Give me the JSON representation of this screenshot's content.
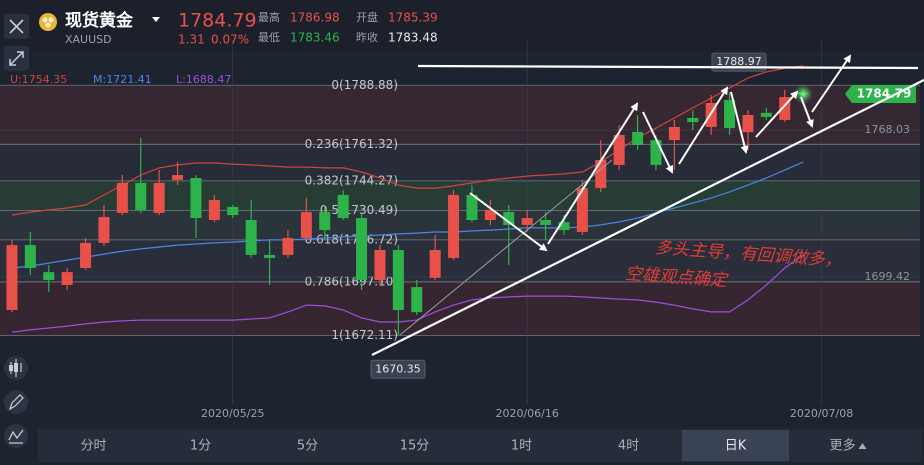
{
  "header": {
    "name": "现货黄金",
    "symbol": "XAUUSD",
    "price": "1784.79",
    "change": "1.31",
    "change_pct": "0.07%",
    "stats": [
      {
        "label": "最高",
        "value": "1786.98"
      },
      {
        "label": "开盘",
        "value": "1785.39"
      },
      {
        "label": "最低",
        "value": "1783.46"
      },
      {
        "label": "昨收",
        "value": "1783.48"
      }
    ]
  },
  "chart_data": {
    "type": "candlestick",
    "open": [
      1684,
      1714.3,
      1701.7,
      1695.7,
      1703.6,
      1715.3,
      1729.3,
      1743.3,
      1729.3,
      1744.7,
      1745.6,
      1726,
      1732.1,
      1726,
      1709.7,
      1709.7,
      1717.6,
      1729.7,
      1737.7,
      1726.9,
      1698,
      1712,
      1694.7,
      1699,
      1708.3,
      1737.7,
      1726,
      1729.7,
      1723.7,
      1726,
      1725,
      1720.4,
      1740.9,
      1751.7,
      1767.1,
      1763.3,
      1763.3,
      1773.6,
      1769.4,
      1782,
      1767,
      1776,
      1772.7,
      1785.39
    ],
    "high": [
      1716.7,
      1720.4,
      1705,
      1703.6,
      1717.6,
      1733,
      1747,
      1764.3,
      1749.3,
      1753.1,
      1747,
      1737.7,
      1733,
      1735.3,
      1716.7,
      1721.3,
      1736.3,
      1733,
      1740,
      1729.7,
      1714.3,
      1714.3,
      1698,
      1719,
      1740,
      1742.3,
      1735.3,
      1733,
      1730.7,
      1729.7,
      1728.3,
      1744.7,
      1763.3,
      1770.3,
      1775,
      1765.7,
      1772.7,
      1777.3,
      1784.3,
      1785.7,
      1777.3,
      1778.3,
      1786.7,
      1786.98
    ],
    "low": [
      1683,
      1700.3,
      1692.4,
      1693.3,
      1702.7,
      1713.9,
      1728.3,
      1729.3,
      1728.3,
      1742.3,
      1717.6,
      1725,
      1726.9,
      1708.3,
      1695.7,
      1708.3,
      1716.7,
      1716.7,
      1726,
      1693.3,
      1695.7,
      1672.3,
      1681.7,
      1698,
      1707.3,
      1725,
      1723.7,
      1705,
      1720.4,
      1716.7,
      1719,
      1719,
      1739,
      1749.3,
      1758.7,
      1749.3,
      1749.3,
      1768,
      1765.7,
      1765.7,
      1758.7,
      1772.7,
      1771.7,
      1783.46
    ],
    "close": [
      1714.3,
      1703.6,
      1698,
      1701.7,
      1715.3,
      1727.4,
      1743.3,
      1730.7,
      1743.3,
      1747,
      1726.9,
      1735.3,
      1728.3,
      1709.7,
      1708.3,
      1717.6,
      1729.7,
      1721.3,
      1726.9,
      1698,
      1712,
      1684,
      1683,
      1712,
      1737.7,
      1726,
      1730.7,
      1723.7,
      1726.9,
      1723.7,
      1721.3,
      1740.9,
      1754,
      1765.7,
      1761,
      1751.7,
      1769.4,
      1771.7,
      1780.6,
      1768.9,
      1775,
      1774.1,
      1783.4,
      1784.79
    ],
    "up_color": "#e8514a",
    "down_color": "#2cb34a",
    "ylim": [
      1642,
      1810
    ],
    "yticks": [
      1768.03,
      1699.42
    ],
    "xlim": [
      -0.65,
      49.35
    ],
    "xticks": [
      {
        "value": 12,
        "label": "2020/05/25"
      },
      {
        "value": 28,
        "label": "2020/06/16"
      },
      {
        "value": 44,
        "label": "2020/07/08"
      }
    ],
    "grid": true,
    "series": [
      {
        "name": "U:1754.35",
        "color": "#d4433b",
        "values": [
          1728.3,
          1729.7,
          1730.7,
          1731.6,
          1733,
          1737.7,
          1742.3,
          1747,
          1750.3,
          1751.7,
          1752.6,
          1752.6,
          1752.1,
          1751.7,
          1751.2,
          1750.7,
          1750.7,
          1750.3,
          1750.3,
          1748.4,
          1745.6,
          1742.3,
          1740.9,
          1740.9,
          1741.9,
          1743.3,
          1744.7,
          1745.6,
          1746.5,
          1747,
          1747.5,
          1748.4,
          1753.1,
          1758.7,
          1764.3,
          1768.9,
          1773.6,
          1778.3,
          1782.9,
          1787.6,
          1792.3,
          1795.1,
          1796.9,
          1797.9
        ]
      },
      {
        "name": "M:1721.41",
        "color": "#4a86e8",
        "values": [
          1703.6,
          1704.5,
          1705.9,
          1707.3,
          1708.7,
          1710.1,
          1711.5,
          1712.5,
          1713.4,
          1714.3,
          1714.8,
          1715.3,
          1715.7,
          1716.2,
          1716.7,
          1716.7,
          1717.1,
          1717.6,
          1718.1,
          1718.5,
          1719,
          1719.5,
          1719.9,
          1720.4,
          1720.4,
          1720.9,
          1721.3,
          1721.8,
          1722.3,
          1722.3,
          1722.3,
          1722.7,
          1723.7,
          1725.1,
          1726.9,
          1729.3,
          1731.6,
          1733.9,
          1736.3,
          1739.1,
          1742.3,
          1745.6,
          1749.3,
          1753.1
        ]
      },
      {
        "name": "L:1688.47",
        "color": "#9b4fe0",
        "values": [
          1673.7,
          1674.7,
          1675.6,
          1676.5,
          1677.5,
          1678.4,
          1678.9,
          1679.3,
          1679.3,
          1679.3,
          1679.3,
          1679.3,
          1679.3,
          1679.8,
          1680.3,
          1683.1,
          1686.3,
          1685.9,
          1684,
          1680.3,
          1678.4,
          1678.4,
          1679.3,
          1683.1,
          1686.3,
          1688.7,
          1689.6,
          1690.1,
          1690.5,
          1690.5,
          1690.5,
          1690.1,
          1689.6,
          1689.1,
          1688.7,
          1687.7,
          1686.3,
          1684.5,
          1683.1,
          1683.1,
          1688.7,
          1695.7,
          1703.6,
          1709.7
        ]
      }
    ],
    "fibonacci": {
      "levels": [
        {
          "value": 1788.88,
          "label": "0(1788.88)"
        },
        {
          "value": 1761.32,
          "label": "0.236(1761.32)"
        },
        {
          "value": 1744.27,
          "label": "0.382(1744.27)"
        },
        {
          "value": 1730.49,
          "label": "0.5(1730.49)"
        },
        {
          "value": 1716.72,
          "label": "0.618(1716.72)"
        },
        {
          "value": 1697.1,
          "label": "0.786(1697.10)"
        },
        {
          "value": 1672.11,
          "label": "1(1672.11)"
        }
      ],
      "band_colors": [
        "rgba(150,60,60,0.20)",
        "rgba(130,130,130,0.10)",
        "rgba(70,150,70,0.22)",
        "rgba(110,140,110,0.16)",
        "rgba(130,130,130,0.12)",
        "rgba(150,50,60,0.20)"
      ]
    },
    "annotations": [
      1788.97,
      1670.35
    ],
    "last_price_color": "#2cb34a",
    "annotation_text": [
      "多头主导，有回调做多，",
      "空雄观点确定"
    ]
  },
  "toolbar": {
    "tabs": [
      "分时",
      "1分",
      "5分",
      "15分",
      "1时",
      "4时",
      "日K",
      "更多"
    ],
    "selected": 6
  }
}
